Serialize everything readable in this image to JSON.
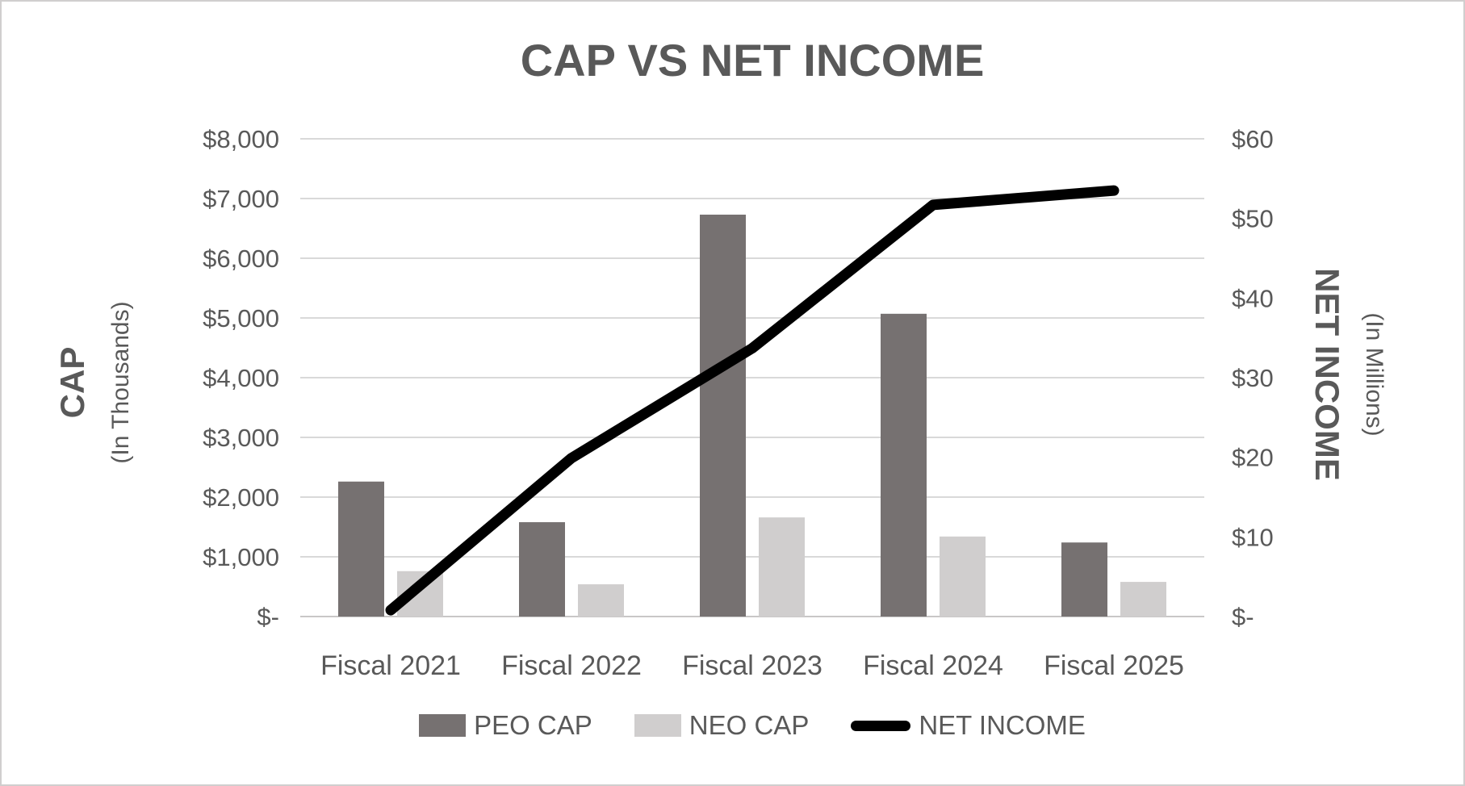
{
  "title": "CAP VS NET INCOME",
  "colors": {
    "peo_bar": "#767171",
    "neo_bar": "#d0cece",
    "net_income_line": "#000000",
    "text": "#595959",
    "gridline": "#d9d9d9",
    "axis_line": "#c9c7c7",
    "background": "#ffffff",
    "border": "#d0cece"
  },
  "left_axis": {
    "title": "CAP",
    "subtitle": "(In Thousands)",
    "ticks": [
      "$-",
      "$1,000",
      "$2,000",
      "$3,000",
      "$4,000",
      "$5,000",
      "$6,000",
      "$7,000",
      "$8,000"
    ],
    "min": 0,
    "max": 8000,
    "step": 1000
  },
  "right_axis": {
    "title": "NET INCOME",
    "subtitle": "(In Millions)",
    "ticks": [
      "$-",
      "$10",
      "$20",
      "$30",
      "$40",
      "$50",
      "$60"
    ],
    "min": 0,
    "max": 60,
    "step": 10
  },
  "legend": [
    {
      "label": "PEO CAP",
      "marker": "bar-swatch",
      "color_key": "peo_bar"
    },
    {
      "label": "NEO CAP",
      "marker": "bar-swatch",
      "color_key": "neo_bar"
    },
    {
      "label": "NET INCOME",
      "marker": "line-swatch",
      "color_key": "net_income_line"
    }
  ],
  "chart_data": {
    "type": "bar",
    "subtype": "grouped-bars-with-line-combo",
    "title": "CAP VS NET INCOME",
    "categories": [
      "Fiscal 2021",
      "Fiscal 2022",
      "Fiscal 2023",
      "Fiscal 2024",
      "Fiscal 2025"
    ],
    "series": [
      {
        "name": "PEO CAP",
        "type": "bar",
        "axis": "left",
        "values": [
          2260,
          1580,
          6730,
          5070,
          1240
        ]
      },
      {
        "name": "NEO CAP",
        "type": "bar",
        "axis": "left",
        "values": [
          760,
          540,
          1660,
          1340,
          580
        ]
      },
      {
        "name": "NET INCOME",
        "type": "line",
        "axis": "right",
        "values": [
          0.8,
          19.9,
          33.7,
          51.7,
          53.5
        ]
      }
    ],
    "left_ylabel": "CAP (In Thousands)",
    "right_ylabel": "NET INCOME (In Millions)",
    "left_ylim": [
      0,
      8000
    ],
    "right_ylim": [
      0,
      60
    ],
    "grid": "horizontal-on",
    "legend_position": "bottom"
  }
}
